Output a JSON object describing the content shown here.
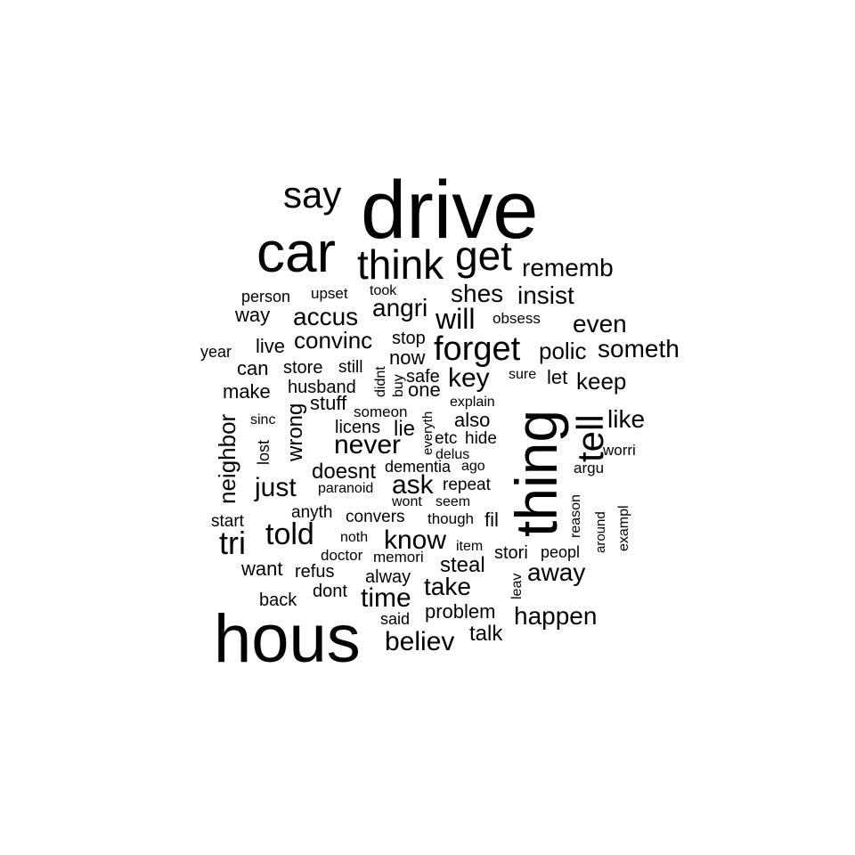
{
  "word_cloud": {
    "words": [
      "drive",
      "hous",
      "car",
      "thing",
      "say",
      "think",
      "get",
      "tell",
      "forget",
      "rememb",
      "shes",
      "insist",
      "will",
      "angri",
      "accus",
      "even",
      "someth",
      "convinc",
      "key",
      "polic",
      "keep",
      "like",
      "never",
      "told",
      "tri",
      "know",
      "away",
      "time",
      "take",
      "happen",
      "believ",
      "just",
      "neighbor",
      "wrong",
      "doesnt",
      "ask",
      "steal",
      "problem",
      "talk",
      "person",
      "upset",
      "took",
      "way",
      "obsess",
      "stop",
      "now",
      "year",
      "live",
      "store",
      "can",
      "still",
      "didnt",
      "buy",
      "safe",
      "one",
      "sure",
      "let",
      "make",
      "husband",
      "stuff",
      "explain",
      "someon",
      "everyth",
      "lie",
      "licens",
      "sinc",
      "also",
      "etc",
      "hide",
      "lost",
      "delus",
      "worri",
      "dementia",
      "ago",
      "argu",
      "paranoid",
      "repeat",
      "wont",
      "seem",
      "reason",
      "exampl",
      "around",
      "start",
      "anyth",
      "convers",
      "though",
      "fil",
      "noth",
      "item",
      "stori",
      "peopl",
      "doctor",
      "memori",
      "want",
      "refus",
      "leav",
      "alway",
      "dont",
      "back",
      "said"
    ]
  }
}
